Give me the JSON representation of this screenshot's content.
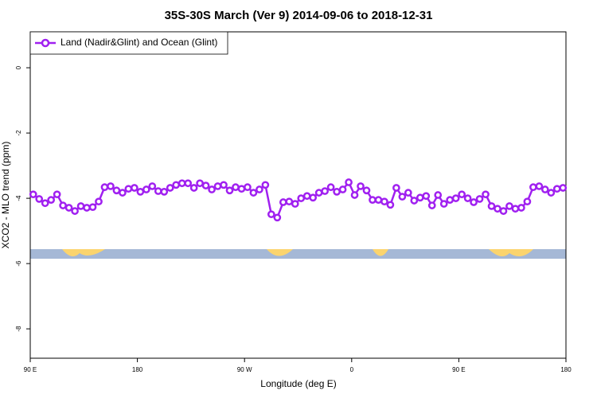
{
  "chart_data": {
    "type": "line",
    "title": "35S-30S March (Ver 9)   2014-09-06 to 2018-12-31",
    "xlabel": "Longitude (deg E)",
    "ylabel": "XCO2 - MLO trend (ppm)",
    "x": [
      92.5,
      97.5,
      102.5,
      107.5,
      112.5,
      117.5,
      122.5,
      127.5,
      132.5,
      137.5,
      142.5,
      147.5,
      152.5,
      157.5,
      162.5,
      167.5,
      172.5,
      177.5,
      182.5,
      187.5,
      192.5,
      197.5,
      202.5,
      207.5,
      212.5,
      217.5,
      222.5,
      227.5,
      232.5,
      237.5,
      242.5,
      247.5,
      252.5,
      257.5,
      262.5,
      267.5,
      272.5,
      277.5,
      282.5,
      287.5,
      292.5,
      297.5,
      302.5,
      307.5,
      312.5,
      317.5,
      322.5,
      327.5,
      332.5,
      337.5,
      342.5,
      347.5,
      352.5,
      357.5,
      362.5,
      367.5,
      372.5,
      377.5,
      382.5,
      387.5,
      392.5,
      397.5,
      402.5,
      407.5,
      412.5,
      417.5,
      422.5,
      427.5,
      432.5,
      437.5,
      442.5,
      447.5,
      452.5,
      457.5,
      462.5,
      467.5,
      472.5,
      477.5,
      482.5,
      487.5,
      492.5,
      497.5,
      502.5,
      507.5,
      512.5,
      517.5,
      522.5,
      527.5,
      532.5,
      537.5
    ],
    "series": [
      {
        "name": "Land (Nadir&Glint) and Ocean (Glint)",
        "color": "#a020f0",
        "values": [
          -3.88,
          -4.02,
          -4.15,
          -4.05,
          -3.88,
          -4.22,
          -4.29,
          -4.39,
          -4.24,
          -4.29,
          -4.27,
          -4.1,
          -3.66,
          -3.63,
          -3.76,
          -3.83,
          -3.71,
          -3.68,
          -3.8,
          -3.73,
          -3.63,
          -3.78,
          -3.8,
          -3.68,
          -3.59,
          -3.54,
          -3.54,
          -3.68,
          -3.54,
          -3.61,
          -3.73,
          -3.63,
          -3.59,
          -3.76,
          -3.66,
          -3.71,
          -3.66,
          -3.83,
          -3.73,
          -3.59,
          -4.49,
          -4.59,
          -4.12,
          -4.1,
          -4.17,
          -4.0,
          -3.93,
          -3.98,
          -3.83,
          -3.78,
          -3.66,
          -3.8,
          -3.73,
          -3.51,
          -3.9,
          -3.63,
          -3.76,
          -4.05,
          -4.05,
          -4.1,
          -4.2,
          -3.68,
          -3.95,
          -3.83,
          -4.07,
          -3.98,
          -3.93,
          -4.22,
          -3.9,
          -4.17,
          -4.05,
          -4.0,
          -3.88,
          -4.0,
          -4.12,
          -4.02,
          -3.88,
          -4.24,
          -4.32,
          -4.39,
          -4.24,
          -4.32,
          -4.29,
          -4.1,
          -3.66,
          -3.63,
          -3.73,
          -3.83,
          -3.71,
          -3.68
        ]
      }
    ],
    "xlim": [
      90,
      540
    ],
    "xticks": [
      {
        "value": 90,
        "label": "90 E"
      },
      180,
      {
        "value": 270,
        "label": "90 W"
      },
      {
        "value": 360,
        "label": "0"
      },
      {
        "value": 450,
        "label": "90 E"
      },
      {
        "value": 540,
        "label": "180"
      }
    ],
    "ylim": [
      -8.9,
      1.1
    ],
    "yticks": [
      0,
      -2,
      -4,
      -6,
      -8
    ],
    "legend": "top-left"
  }
}
